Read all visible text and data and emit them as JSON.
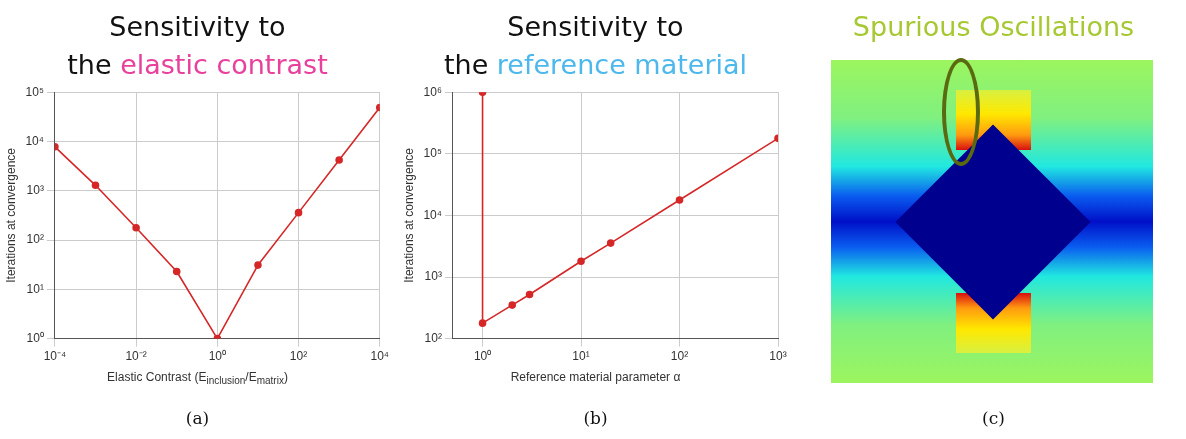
{
  "chart_data": [
    {
      "type": "line",
      "title": "Sensitivity to the",
      "subtitle": "elastic contrast",
      "xlabel": "Elastic Contrast (E$_{inclusion}$/E$_{matrix}$)",
      "ylabel": "Iterations at convergence",
      "log": "xy",
      "grid": true,
      "marker": "circle",
      "line_style": "solid",
      "x": [
        0.0001,
        0.001,
        0.01,
        0.1,
        1,
        10,
        100,
        1000,
        10000
      ],
      "series": [
        {
          "color": "#d62728",
          "values": [
            7800,
            1290,
            178,
            23,
            1,
            31,
            360,
            4200,
            49000
          ]
        }
      ],
      "xlim": [
        0.0001,
        10000
      ],
      "xticks": [
        {
          "value": 0.0001,
          "label": "10⁻⁴"
        },
        {
          "value": 0.01,
          "label": "10⁻²"
        },
        {
          "value": 1,
          "label": "10⁰"
        },
        {
          "value": 100,
          "label": "10²"
        },
        {
          "value": 10000,
          "label": "10⁴"
        }
      ],
      "ylim": [
        1,
        100000
      ],
      "yticks": [
        {
          "value": 1,
          "label": "10⁰"
        },
        {
          "value": 10,
          "label": "10¹"
        },
        {
          "value": 100,
          "label": "10²"
        },
        {
          "value": 1000,
          "label": "10³"
        },
        {
          "value": 10000,
          "label": "10⁴"
        },
        {
          "value": 100000,
          "label": "10⁵"
        }
      ],
      "annotations": [
        "(a)"
      ]
    },
    {
      "type": "line",
      "title": "Sensitivity to the",
      "subtitle": "reference material",
      "xlabel": "Reference material parameter α",
      "ylabel": "Iterations at convergence",
      "log": "xy",
      "grid": true,
      "marker": "circle",
      "line_style": "solid",
      "x": [
        1,
        1,
        2,
        3,
        10,
        20,
        100,
        1000
      ],
      "series": [
        {
          "color": "#d62728",
          "values": [
            1000000,
            178,
            350,
            520,
            1800,
            3550,
            17800,
            178000
          ]
        }
      ],
      "xlim": [
        0.5,
        1000
      ],
      "xticks": [
        {
          "value": 1,
          "label": "10⁰"
        },
        {
          "value": 10,
          "label": "10¹"
        },
        {
          "value": 100,
          "label": "10²"
        },
        {
          "value": 1000,
          "label": "10³"
        }
      ],
      "ylim": [
        100,
        1000000
      ],
      "yticks": [
        {
          "value": 100,
          "label": "10²"
        },
        {
          "value": 1000,
          "label": "10³"
        },
        {
          "value": 10000,
          "label": "10⁴"
        },
        {
          "value": 100000,
          "label": "10⁵"
        },
        {
          "value": 1000000,
          "label": "10⁶"
        }
      ],
      "annotations": [
        "(b)"
      ]
    },
    {
      "type": "other",
      "title": "Spurious Oscillations",
      "annotations": [
        "(c)"
      ]
    }
  ]
}
